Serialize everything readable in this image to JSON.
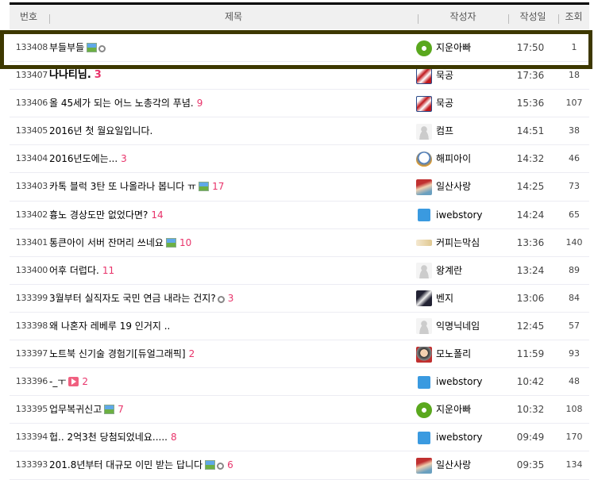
{
  "header": {
    "num": "번호",
    "title": "제목",
    "author": "작성자",
    "date": "작성일",
    "views": "조회"
  },
  "colors": {
    "comment_count": "#e8336a",
    "highlight_border": "#3d3800"
  },
  "rows": [
    {
      "num": "133408",
      "title": "부들부들",
      "icons": [
        "image",
        "link"
      ],
      "comments": "",
      "author": "지운아빠",
      "avatar": "green-clover",
      "date": "17:50",
      "views": "1",
      "highlighted": true
    },
    {
      "num": "133407",
      "title": "나나티님.",
      "bold": true,
      "icons": [],
      "comments": "3",
      "author": "묵공",
      "avatar": "red-character",
      "date": "17:36",
      "views": "18"
    },
    {
      "num": "133406",
      "title": "올 45세가 되는 어느 노총각의 푸념.",
      "icons": [],
      "comments": "9",
      "author": "묵공",
      "avatar": "red-character",
      "date": "15:36",
      "views": "107"
    },
    {
      "num": "133405",
      "title": "2016년 첫 월요일입니다.",
      "icons": [],
      "comments": "",
      "author": "컴프",
      "avatar": "default-person",
      "date": "14:51",
      "views": "38"
    },
    {
      "num": "133404",
      "title": "2016년도에는...",
      "icons": [],
      "comments": "3",
      "author": "해피아이",
      "avatar": "duck",
      "date": "14:32",
      "views": "46"
    },
    {
      "num": "133403",
      "title": "카톡 블럭 3탄 또 나올라나 봅니다 ㅠ",
      "icons": [
        "image"
      ],
      "comments": "17",
      "author": "일산사랑",
      "avatar": "anime-girl",
      "date": "14:25",
      "views": "73"
    },
    {
      "num": "133402",
      "title": "흉노 경상도만 없었다면?",
      "icons": [],
      "comments": "14",
      "author": "iwebstory",
      "avatar": "info",
      "date": "14:24",
      "views": "65"
    },
    {
      "num": "133401",
      "title": "통큰아이 서버 잔머리 쓰네요",
      "icons": [
        "image"
      ],
      "comments": "10",
      "author": "커피는막심",
      "avatar": "maxim-logo",
      "date": "13:36",
      "views": "140"
    },
    {
      "num": "133400",
      "title": "어후 더럽다.",
      "icons": [],
      "comments": "11",
      "author": "왕계란",
      "avatar": "default-person",
      "date": "13:24",
      "views": "89"
    },
    {
      "num": "133399",
      "title": "3월부터 실직자도 국민 연금 내라는 건지?",
      "icons": [
        "link"
      ],
      "comments": "3",
      "author": "벤지",
      "avatar": "dog",
      "date": "13:06",
      "views": "84"
    },
    {
      "num": "133398",
      "title": "왜 나혼자 레베루 19 인거지 ..",
      "icons": [],
      "comments": "",
      "author": "익명닉네임",
      "avatar": "default-person",
      "date": "12:45",
      "views": "57"
    },
    {
      "num": "133397",
      "title": "노트북 신기술 경험기[듀얼그래픽]",
      "icons": [],
      "comments": "2",
      "author": "모노폴리",
      "avatar": "monopoly",
      "date": "11:59",
      "views": "93"
    },
    {
      "num": "133396",
      "title": "-_ㅜ",
      "icons": [
        "video"
      ],
      "comments": "2",
      "author": "iwebstory",
      "avatar": "info",
      "date": "10:42",
      "views": "48"
    },
    {
      "num": "133395",
      "title": "업무복귀신고",
      "icons": [
        "image"
      ],
      "comments": "7",
      "author": "지운아빠",
      "avatar": "green-clover",
      "date": "10:32",
      "views": "108"
    },
    {
      "num": "133394",
      "title": "헙.. 2억3천 당첨되었네요.....",
      "icons": [],
      "comments": "8",
      "author": "iwebstory",
      "avatar": "info",
      "date": "09:49",
      "views": "170"
    },
    {
      "num": "133393",
      "title": "201.8년부터 대규모 이민 받는 답니다",
      "icons": [
        "image",
        "link"
      ],
      "comments": "6",
      "author": "일산사랑",
      "avatar": "anime-girl",
      "date": "09:35",
      "views": "134"
    }
  ]
}
